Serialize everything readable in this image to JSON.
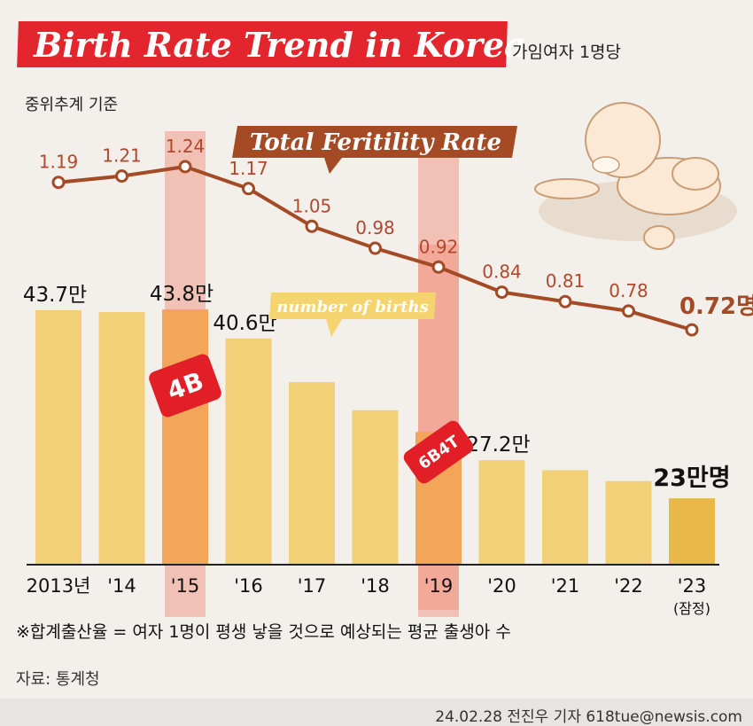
{
  "header": {
    "title": "Birth Rate Trend in Korea",
    "unit_note": "가임여자 1명당",
    "basis": "중위추계 기준"
  },
  "footnote": "※합계출산율 = 여자 1명이 평생 낳을 것으로 예상되는 평균 출생아 수",
  "source": "자료: 통계청",
  "credit": "24.02.28 전진우 기자 618tue@newsis.com",
  "colors": {
    "bar": "#f2d078",
    "bar_highlight": "#f3a65a",
    "bar_last": "#e9b84a",
    "line": "#a44a24",
    "highlight_band": "#f19a89",
    "badge": "#e21f26",
    "callout": "#f5d470"
  },
  "chart_data": {
    "type": "bar",
    "categories": [
      "2013년",
      "'14",
      "'15",
      "'16",
      "'17",
      "'18",
      "'19",
      "'20",
      "'21",
      "'22",
      "'23"
    ],
    "category_note": "(잠정)",
    "series": [
      {
        "name": "number of births",
        "values": [
          43.7,
          43.5,
          43.8,
          40.6,
          35.8,
          32.7,
          30.3,
          27.2,
          26.1,
          24.9,
          23.0
        ],
        "labels": [
          "43.7만",
          "",
          "43.8만",
          "40.6만",
          "",
          "",
          "",
          "27.2만",
          "",
          "",
          "23만명"
        ]
      },
      {
        "name": "Total Feritility Rate",
        "values": [
          1.19,
          1.21,
          1.24,
          1.17,
          1.05,
          0.98,
          0.92,
          0.84,
          0.81,
          0.78,
          0.72
        ],
        "labels": [
          "1.19",
          "1.21",
          "1.24",
          "1.17",
          "1.05",
          "0.98",
          "0.92",
          "0.84",
          "0.81",
          "0.78",
          "0.72명"
        ]
      }
    ],
    "highlights": [
      {
        "category": "'15",
        "badge": "4B"
      },
      {
        "category": "'19",
        "badge": "6B4T"
      }
    ]
  }
}
